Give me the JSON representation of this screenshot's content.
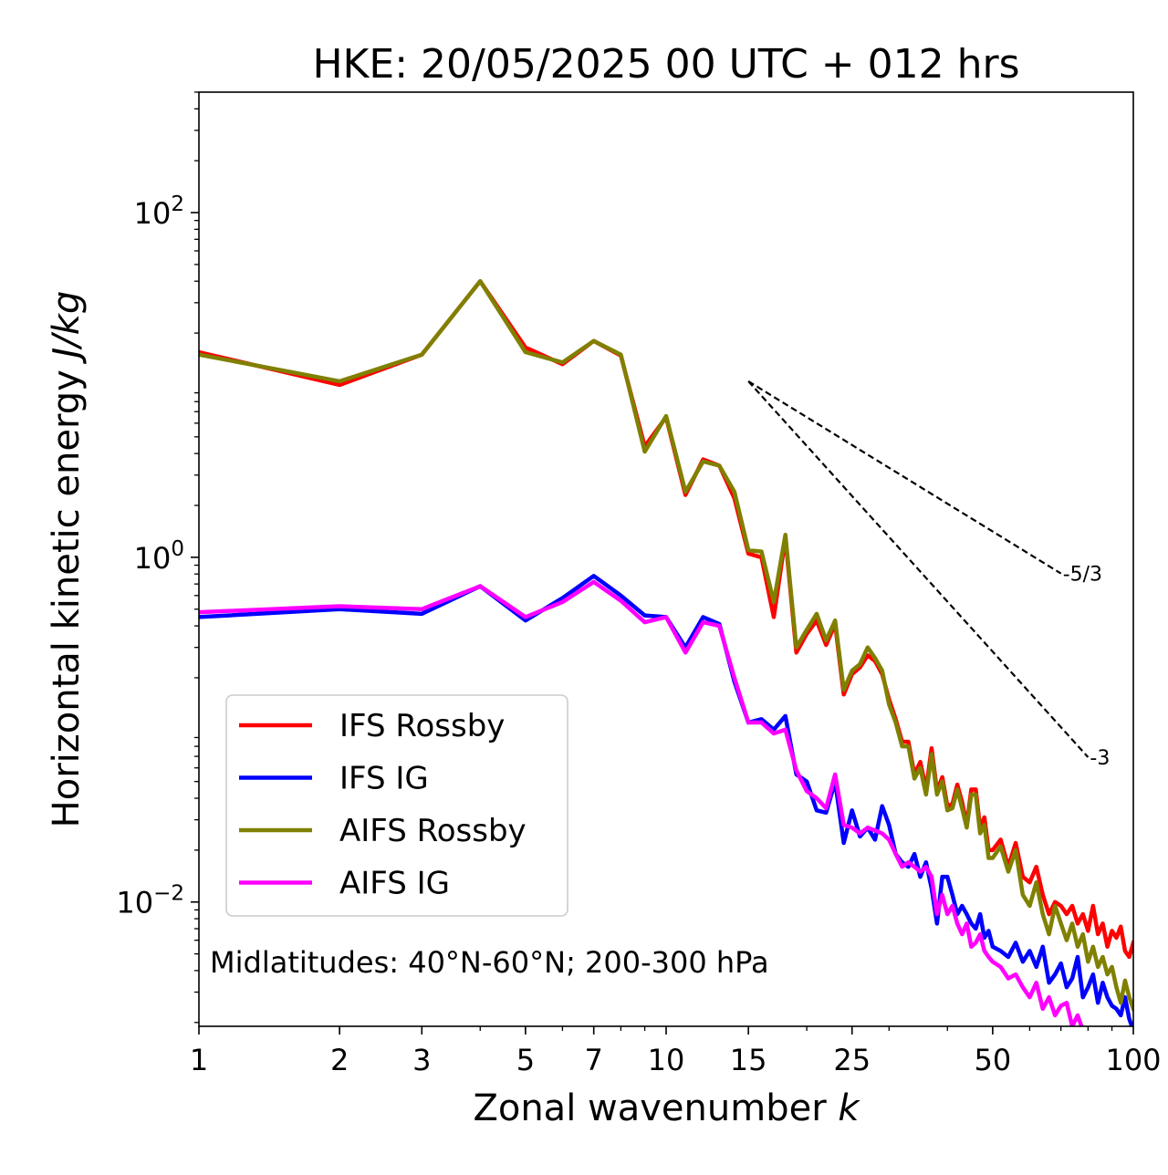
{
  "chart_data": {
    "type": "line",
    "title": "HKE: 20/05/2025 00 UTC + 012 hrs",
    "xlabel": "Zonal wavenumber ",
    "xlabel_italic": "k",
    "ylabel": "Horizontal kinetic energy ",
    "ylabel_italic": "J/kg",
    "x_scale": "log",
    "y_scale": "log",
    "xlim": [
      1,
      100
    ],
    "ylim": [
      0.0019,
      500
    ],
    "x_tick_labels": [
      "1",
      "2",
      "3",
      "5",
      "7",
      "10",
      "15",
      "25",
      "50",
      "100"
    ],
    "x_ticks": [
      1,
      2,
      3,
      5,
      7,
      10,
      15,
      25,
      50,
      100
    ],
    "y_ticks": [
      {
        "value": 100,
        "base": "10",
        "exp": "2"
      },
      {
        "value": 1,
        "base": "10",
        "exp": "0"
      },
      {
        "value": 0.01,
        "base": "10",
        "exp": "−2"
      }
    ],
    "annotation": "Midlatitudes: 40°N-60°N; 200-300 hPa",
    "legend_placement": "lower-left",
    "reference_lines": [
      {
        "label": "-5/3",
        "slope": -1.6667,
        "x": [
          15,
          70
        ],
        "y0": 10.5
      },
      {
        "label": "-3",
        "slope": -3,
        "x": [
          15,
          80
        ],
        "y0": 10.5
      }
    ],
    "series": [
      {
        "name": "IFS Rossby",
        "color": "#ff0000",
        "x": [
          1,
          2,
          3,
          4,
          5,
          6,
          7,
          8,
          9,
          10,
          11,
          12,
          13,
          14,
          15,
          16,
          17,
          18,
          19,
          20,
          21,
          22,
          23,
          24,
          25,
          26,
          27,
          28,
          29,
          30,
          31,
          32,
          33,
          34,
          35,
          36,
          37,
          38,
          39,
          40,
          41,
          42,
          43,
          44,
          45,
          46,
          47,
          48,
          49,
          50,
          52,
          54,
          56,
          58,
          60,
          62,
          64,
          66,
          68,
          70,
          72,
          74,
          76,
          78,
          80,
          82,
          84,
          86,
          88,
          90,
          92,
          94,
          96,
          98,
          100
        ],
        "y": [
          15.5,
          10,
          15,
          40,
          16.5,
          13.2,
          18,
          14.8,
          4.4,
          6.5,
          2.3,
          3.7,
          3.4,
          2.2,
          1.05,
          1.0,
          0.45,
          1.3,
          0.28,
          0.36,
          0.43,
          0.31,
          0.41,
          0.16,
          0.21,
          0.23,
          0.27,
          0.25,
          0.21,
          0.15,
          0.115,
          0.085,
          0.085,
          0.055,
          0.065,
          0.045,
          0.078,
          0.044,
          0.053,
          0.036,
          0.037,
          0.048,
          0.038,
          0.028,
          0.045,
          0.045,
          0.027,
          0.031,
          0.02,
          0.02,
          0.023,
          0.016,
          0.022,
          0.014,
          0.013,
          0.016,
          0.011,
          0.0085,
          0.01,
          0.0095,
          0.0085,
          0.0095,
          0.0075,
          0.0085,
          0.0068,
          0.0095,
          0.0065,
          0.0075,
          0.0055,
          0.0068,
          0.0062,
          0.0072,
          0.0052,
          0.0048,
          0.0058
        ]
      },
      {
        "name": "IFS IG",
        "color": "#0000ff",
        "x": [
          1,
          2,
          3,
          4,
          5,
          6,
          7,
          8,
          9,
          10,
          11,
          12,
          13,
          14,
          15,
          16,
          17,
          18,
          19,
          20,
          21,
          22,
          23,
          24,
          25,
          26,
          27,
          28,
          29,
          30,
          31,
          32,
          33,
          34,
          35,
          36,
          37,
          38,
          39,
          40,
          41,
          42,
          43,
          44,
          45,
          46,
          47,
          48,
          49,
          50,
          52,
          54,
          56,
          58,
          60,
          62,
          64,
          66,
          68,
          70,
          72,
          74,
          76,
          78,
          80,
          82,
          84,
          86,
          88,
          90,
          92,
          94,
          96,
          98,
          100
        ],
        "y": [
          0.45,
          0.5,
          0.47,
          0.68,
          0.43,
          0.58,
          0.78,
          0.6,
          0.46,
          0.45,
          0.3,
          0.45,
          0.41,
          0.19,
          0.11,
          0.115,
          0.1,
          0.12,
          0.055,
          0.05,
          0.034,
          0.033,
          0.05,
          0.022,
          0.034,
          0.024,
          0.027,
          0.023,
          0.036,
          0.028,
          0.019,
          0.017,
          0.016,
          0.019,
          0.014,
          0.017,
          0.012,
          0.0075,
          0.014,
          0.014,
          0.011,
          0.0085,
          0.0095,
          0.0085,
          0.0075,
          0.007,
          0.0085,
          0.0062,
          0.0068,
          0.0055,
          0.0052,
          0.0048,
          0.0058,
          0.0045,
          0.0052,
          0.0042,
          0.0055,
          0.0034,
          0.0038,
          0.0044,
          0.0032,
          0.0036,
          0.0048,
          0.0028,
          0.0032,
          0.0038,
          0.0026,
          0.0034,
          0.0028,
          0.0025,
          0.0024,
          0.0022,
          0.0028,
          0.0021,
          0.0018
        ]
      },
      {
        "name": "AIFS Rossby",
        "color": "#808000",
        "x": [
          1,
          2,
          3,
          4,
          5,
          6,
          7,
          8,
          9,
          10,
          11,
          12,
          13,
          14,
          15,
          16,
          17,
          18,
          19,
          20,
          21,
          22,
          23,
          24,
          25,
          26,
          27,
          28,
          29,
          30,
          31,
          32,
          33,
          34,
          35,
          36,
          37,
          38,
          39,
          40,
          41,
          42,
          43,
          44,
          45,
          46,
          47,
          48,
          49,
          50,
          52,
          54,
          56,
          58,
          60,
          62,
          64,
          66,
          68,
          70,
          72,
          74,
          76,
          78,
          80,
          82,
          84,
          86,
          88,
          90,
          92,
          94,
          96,
          98,
          100
        ],
        "y": [
          15,
          10.5,
          15,
          40,
          15.5,
          13.5,
          18,
          15,
          4.1,
          6.6,
          2.4,
          3.6,
          3.4,
          2.4,
          1.1,
          1.08,
          0.55,
          1.35,
          0.3,
          0.38,
          0.47,
          0.33,
          0.43,
          0.17,
          0.22,
          0.24,
          0.3,
          0.26,
          0.22,
          0.14,
          0.11,
          0.08,
          0.08,
          0.052,
          0.06,
          0.042,
          0.072,
          0.042,
          0.05,
          0.034,
          0.035,
          0.045,
          0.035,
          0.027,
          0.042,
          0.042,
          0.025,
          0.028,
          0.018,
          0.018,
          0.021,
          0.015,
          0.02,
          0.011,
          0.0095,
          0.013,
          0.0085,
          0.0065,
          0.0095,
          0.0075,
          0.006,
          0.0075,
          0.0055,
          0.0065,
          0.0045,
          0.0055,
          0.0042,
          0.0048,
          0.0038,
          0.0042,
          0.0032,
          0.0026,
          0.0035,
          0.0028,
          0.0024
        ]
      },
      {
        "name": "AIFS IG",
        "color": "#ff00ff",
        "x": [
          1,
          2,
          3,
          4,
          5,
          6,
          7,
          8,
          9,
          10,
          11,
          12,
          13,
          14,
          15,
          16,
          17,
          18,
          19,
          20,
          21,
          22,
          23,
          24,
          25,
          26,
          27,
          28,
          29,
          30,
          31,
          32,
          33,
          34,
          35,
          36,
          37,
          38,
          39,
          40,
          41,
          42,
          43,
          44,
          45,
          46,
          47,
          48,
          49,
          50,
          52,
          54,
          56,
          58,
          60,
          62,
          64,
          66,
          68,
          70,
          72,
          74,
          76,
          78,
          80,
          82,
          84,
          86,
          88,
          90,
          92,
          94,
          96,
          98,
          100
        ],
        "y": [
          0.48,
          0.52,
          0.5,
          0.68,
          0.45,
          0.55,
          0.72,
          0.56,
          0.42,
          0.45,
          0.28,
          0.42,
          0.4,
          0.2,
          0.11,
          0.11,
          0.095,
          0.1,
          0.058,
          0.044,
          0.04,
          0.035,
          0.055,
          0.028,
          0.027,
          0.025,
          0.027,
          0.026,
          0.025,
          0.023,
          0.019,
          0.016,
          0.017,
          0.016,
          0.015,
          0.016,
          0.014,
          0.0085,
          0.011,
          0.0085,
          0.0095,
          0.0075,
          0.0065,
          0.0075,
          0.0055,
          0.0058,
          0.0065,
          0.0052,
          0.0048,
          0.0045,
          0.0042,
          0.0036,
          0.0038,
          0.0032,
          0.0028,
          0.0034,
          0.0024,
          0.0028,
          0.0022,
          0.0025,
          0.0026,
          0.0019,
          0.0022,
          0.0018,
          0.0017,
          0.0018,
          0.0016,
          0.0016,
          0.0015,
          0.0014,
          0.0013,
          0.0013,
          0.0012,
          0.0012,
          0.0011
        ]
      }
    ]
  }
}
